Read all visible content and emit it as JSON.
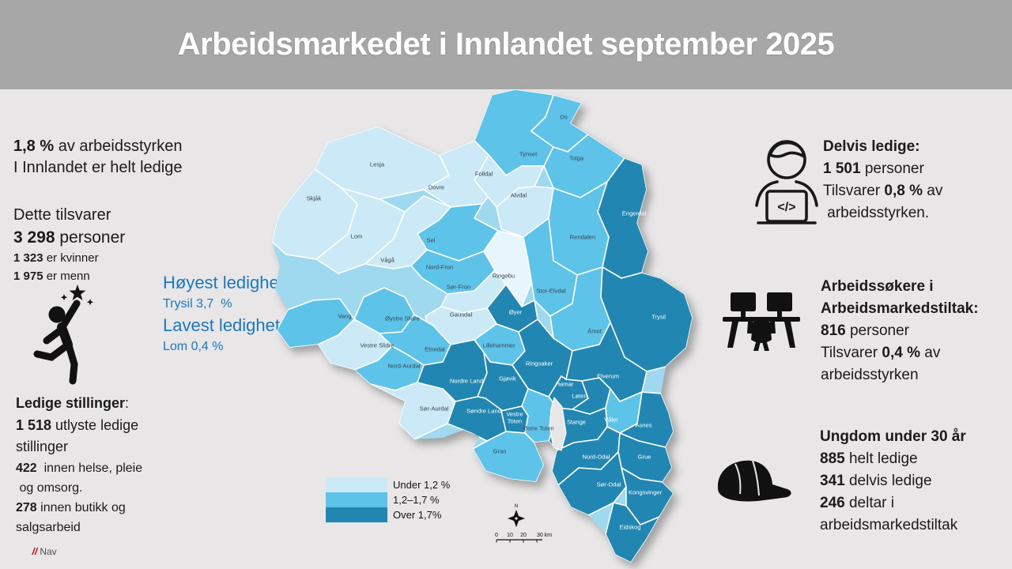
{
  "colors": {
    "under": "#cbe9f7",
    "mid": "#5ec3e9",
    "over": "#2187b2",
    "base": "#9fd9ef",
    "lake": "#e8e6e6",
    "header_bg": "#a7a7a7",
    "accent_blue": "#1879c0",
    "nav_red": "#c30000"
  },
  "header": {
    "title": "Arbeidsmarkedet i Innlandet september 2025"
  },
  "left": {
    "summary": [
      {
        "s": "md",
        "seg": [
          {
            "t": "1,8 %",
            "b": true
          },
          {
            "t": " av arbeidsstyrken"
          }
        ]
      },
      {
        "s": "md",
        "seg": [
          {
            "t": "I Innlandet er helt ledige"
          }
        ]
      }
    ],
    "totals": [
      {
        "s": "md",
        "seg": [
          {
            "t": "Dette tilsvarer"
          }
        ]
      },
      {
        "s": "lg",
        "seg": [
          {
            "t": "3 298",
            "b": true
          },
          {
            "t": " personer"
          }
        ]
      },
      {
        "s": "sm",
        "seg": [
          {
            "t": "1 323",
            "b": true
          },
          {
            "t": " er kvinner"
          }
        ]
      },
      {
        "s": "sm",
        "seg": [
          {
            "t": "1 975",
            "b": true
          },
          {
            "t": " er menn"
          }
        ]
      }
    ],
    "extremes": [
      {
        "s": "blue-lg",
        "seg": [
          {
            "t": "Høyest ledighet"
          }
        ]
      },
      {
        "s": "blue-sm",
        "seg": [
          {
            "t": "Trysil 3,7  %"
          }
        ]
      },
      {
        "s": "blue-lg",
        "seg": [
          {
            "t": "Lavest ledighet"
          }
        ]
      },
      {
        "s": "blue-sm",
        "seg": [
          {
            "t": "Lom 0,4 %"
          }
        ]
      }
    ],
    "vacancies": [
      {
        "s": "md",
        "seg": [
          {
            "t": "Ledige stillinger",
            "b": true
          },
          {
            "t": ":"
          }
        ]
      },
      {
        "s": "md",
        "seg": [
          {
            "t": "1 518",
            "b": true
          },
          {
            "t": " utlyste ledige"
          }
        ]
      },
      {
        "s": "md",
        "seg": [
          {
            "t": "stillinger"
          }
        ]
      },
      {
        "s": "sm2",
        "seg": [
          {
            "t": "422",
            "b": true
          },
          {
            "t": "  innen helse, pleie"
          }
        ]
      },
      {
        "s": "sm2",
        "seg": [
          {
            "t": " og omsorg."
          }
        ]
      },
      {
        "s": "sm2",
        "seg": [
          {
            "t": "278",
            "b": true
          },
          {
            "t": " innen butikk og"
          }
        ]
      },
      {
        "s": "sm2",
        "seg": [
          {
            "t": "salgsarbeid"
          }
        ]
      }
    ],
    "logo": {
      "slashes": "//",
      "name": "Nav"
    }
  },
  "right": {
    "partial": [
      {
        "seg": [
          {
            "t": "Delvis ledige:",
            "b": true
          }
        ]
      },
      {
        "seg": [
          {
            "t": "1 501",
            "b": true
          },
          {
            "t": " personer"
          }
        ]
      },
      {
        "seg": [
          {
            "t": "Tilsvarer "
          },
          {
            "t": "0,8 %",
            "b": true
          },
          {
            "t": " av"
          }
        ]
      },
      {
        "seg": [
          {
            "t": " arbeidsstyrken."
          }
        ]
      }
    ],
    "measures": [
      {
        "seg": [
          {
            "t": "Arbeidssøkere i",
            "b": true
          }
        ]
      },
      {
        "seg": [
          {
            "t": "Arbeidsmarkedstiltak:",
            "b": true
          }
        ]
      },
      {
        "seg": [
          {
            "t": "816",
            "b": true
          },
          {
            "t": " personer"
          }
        ]
      },
      {
        "seg": [
          {
            "t": "Tilsvarer "
          },
          {
            "t": "0,4 %",
            "b": true
          },
          {
            "t": " av"
          }
        ]
      },
      {
        "seg": [
          {
            "t": "arbeidsstyrken"
          }
        ]
      }
    ],
    "youth": [
      {
        "seg": [
          {
            "t": "Ungdom under 30 år",
            "b": true
          }
        ]
      },
      {
        "seg": [
          {
            "t": "885",
            "b": true
          },
          {
            "t": " helt ledige"
          }
        ]
      },
      {
        "seg": [
          {
            "t": "341",
            "b": true
          },
          {
            "t": " delvis ledige"
          }
        ]
      },
      {
        "seg": [
          {
            "t": "246",
            "b": true
          },
          {
            "t": " deltar i"
          }
        ]
      },
      {
        "seg": [
          {
            "t": "arbeidsmarkedstiltak"
          }
        ]
      }
    ]
  },
  "map": {
    "legend": [
      {
        "label": "Under 1,2 %",
        "level": "under"
      },
      {
        "label": "1,2–1,7 %",
        "level": "mid"
      },
      {
        "label": "Over 1,7%",
        "level": "over"
      }
    ],
    "compass_label": "N",
    "scale_ticks": [
      "0",
      "10",
      "20",
      "30 km"
    ],
    "municipalities": [
      {
        "name": "Lesja",
        "level": "under"
      },
      {
        "name": "Dovre",
        "level": "under"
      },
      {
        "name": "Tynset",
        "level": "mid"
      },
      {
        "name": "Os",
        "level": "mid"
      },
      {
        "name": "Tolga",
        "level": "mid"
      },
      {
        "name": "Folldal",
        "level": "under"
      },
      {
        "name": "Alvdal",
        "level": "under"
      },
      {
        "name": "Engerdal",
        "level": "over"
      },
      {
        "name": "Rendalen",
        "level": "mid"
      },
      {
        "name": "Skjåk",
        "level": "under"
      },
      {
        "name": "Lom",
        "level": "under"
      },
      {
        "name": "Vågå",
        "level": "under"
      },
      {
        "name": "Sel",
        "level": "mid"
      },
      {
        "name": "Nord-Fron",
        "level": "mid"
      },
      {
        "name": "Sør-Fron",
        "level": "under"
      },
      {
        "name": "Ringebu",
        "level": "under"
      },
      {
        "name": "Stor-Elvdal",
        "level": "mid"
      },
      {
        "name": "Åmot",
        "level": "mid"
      },
      {
        "name": "Trysil",
        "level": "over"
      },
      {
        "name": "Øyer",
        "level": "over"
      },
      {
        "name": "Gausdal",
        "level": "under"
      },
      {
        "name": "Vang",
        "level": "mid"
      },
      {
        "name": "Øystre Slidre",
        "level": "mid"
      },
      {
        "name": "Vestre Slidre",
        "level": "under"
      },
      {
        "name": "Etnedal",
        "level": "mid"
      },
      {
        "name": "Nord-Aurdal",
        "level": "mid"
      },
      {
        "name": "Sør-Aurdal",
        "level": "under"
      },
      {
        "name": "Nordre Land",
        "level": "over"
      },
      {
        "name": "Lillehammer",
        "level": "mid"
      },
      {
        "name": "Ringsaker",
        "level": "over"
      },
      {
        "name": "Gjøvik",
        "level": "over"
      },
      {
        "name": "Hamar",
        "level": "over"
      },
      {
        "name": "Løten",
        "level": "over"
      },
      {
        "name": "Elverum",
        "level": "over"
      },
      {
        "name": "Våler",
        "level": "mid"
      },
      {
        "name": "Åsnes",
        "level": "over"
      },
      {
        "name": "Stange",
        "level": "over"
      },
      {
        "name": "Nord-Odal",
        "level": "over"
      },
      {
        "name": "Grue",
        "level": "over"
      },
      {
        "name": "Sør-Odal",
        "level": "over"
      },
      {
        "name": "Kongsvinger",
        "level": "over"
      },
      {
        "name": "Eidskog",
        "level": "over"
      },
      {
        "name": "Søndre Land",
        "level": "over"
      },
      {
        "name": "Vestre Toten",
        "level": "over"
      },
      {
        "name": "Østre Toten",
        "level": "mid"
      },
      {
        "name": "Gran",
        "level": "mid"
      }
    ]
  }
}
